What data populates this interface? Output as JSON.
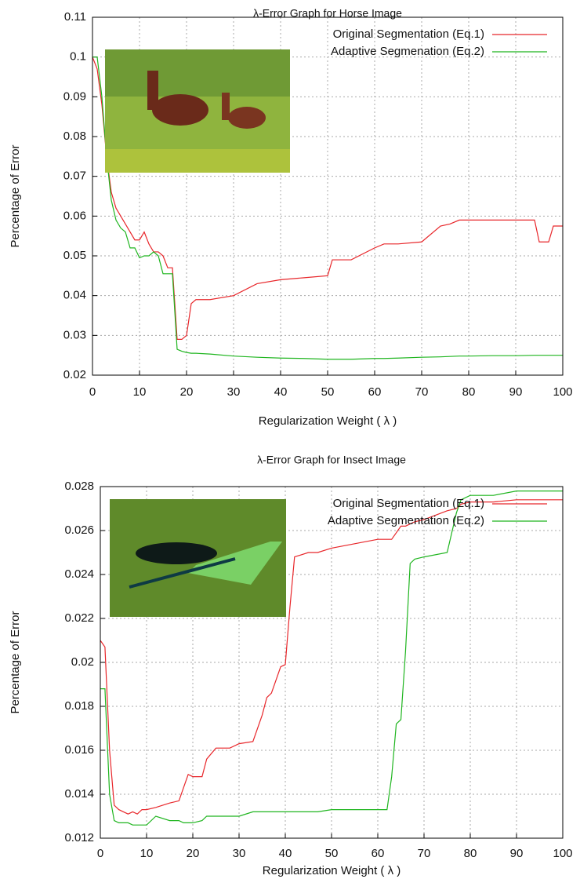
{
  "chart_data": [
    {
      "type": "line",
      "title": "λ-Error Graph for Horse Image",
      "x_label": "Regularization Weight ( λ )",
      "y_label": "Percentage of Error",
      "x": [
        0,
        1,
        2,
        3,
        4,
        5,
        6,
        7,
        8,
        9,
        10,
        11,
        12,
        13,
        14,
        15,
        16,
        17,
        18,
        19,
        20,
        21,
        22,
        25,
        30,
        35,
        40,
        45,
        50,
        51,
        55,
        60,
        62,
        65,
        70,
        74,
        76,
        78,
        80,
        85,
        90,
        94,
        95,
        97,
        98,
        100
      ],
      "series": [
        {
          "name": "Original Segmentation (Eq.1)",
          "color": "#e8262a",
          "values": [
            0.1,
            0.097,
            0.088,
            0.075,
            0.066,
            0.062,
            0.06,
            0.058,
            0.056,
            0.054,
            0.054,
            0.056,
            0.053,
            0.051,
            0.051,
            0.05,
            0.047,
            0.047,
            0.029,
            0.029,
            0.03,
            0.038,
            0.039,
            0.039,
            0.04,
            0.043,
            0.044,
            0.0445,
            0.045,
            0.049,
            0.049,
            0.052,
            0.053,
            0.053,
            0.0535,
            0.0575,
            0.058,
            0.059,
            0.059,
            0.059,
            0.059,
            0.059,
            0.0535,
            0.0535,
            0.0575,
            0.0575
          ]
        },
        {
          "name": "Adaptive Segmenation (Eq.2)",
          "color": "#1fb51f",
          "values": [
            0.1,
            0.1,
            0.09,
            0.075,
            0.064,
            0.059,
            0.057,
            0.056,
            0.052,
            0.052,
            0.0495,
            0.05,
            0.05,
            0.051,
            0.05,
            0.0455,
            0.0455,
            0.0455,
            0.0265,
            0.026,
            0.0257,
            0.0255,
            0.0255,
            0.0253,
            0.0248,
            0.0245,
            0.0243,
            0.0242,
            0.024,
            0.024,
            0.024,
            0.0242,
            0.0242,
            0.0243,
            0.0245,
            0.0246,
            0.0247,
            0.0248,
            0.0248,
            0.0249,
            0.0249,
            0.025,
            0.025,
            0.025,
            0.025,
            0.025
          ]
        }
      ],
      "xlim": [
        0,
        100
      ],
      "xticks": [
        0,
        10,
        20,
        30,
        40,
        50,
        60,
        70,
        80,
        90,
        100
      ],
      "ylim": [
        0.02,
        0.11
      ],
      "yticks": [
        0.02,
        0.03,
        0.04,
        0.05,
        0.06,
        0.07,
        0.08,
        0.09,
        0.1,
        0.11
      ],
      "grid": true,
      "legend": "top-right"
    },
    {
      "type": "line",
      "title": "λ-Error Graph for Insect Image",
      "x_label": "Regularization Weight ( λ )",
      "y_label": "Percentage of Error",
      "x": [
        0,
        1,
        2,
        3,
        4,
        5,
        6,
        7,
        8,
        9,
        10,
        12,
        15,
        17,
        18,
        19,
        20,
        22,
        23,
        25,
        28,
        30,
        33,
        35,
        36,
        37,
        38,
        39,
        40,
        41,
        42,
        45,
        47,
        50,
        55,
        60,
        62,
        63,
        64,
        65,
        66,
        67,
        68,
        70,
        75,
        77,
        78,
        80,
        85,
        90,
        100
      ],
      "series": [
        {
          "name": "Original Segmentation (Eq.1)",
          "color": "#e8262a",
          "values": [
            0.021,
            0.0207,
            0.016,
            0.0135,
            0.0133,
            0.0132,
            0.0131,
            0.0132,
            0.0131,
            0.0133,
            0.0133,
            0.0134,
            0.0136,
            0.0137,
            0.0143,
            0.0149,
            0.0148,
            0.0148,
            0.0156,
            0.0161,
            0.0161,
            0.0163,
            0.0164,
            0.0176,
            0.0184,
            0.0186,
            0.0192,
            0.0198,
            0.0199,
            0.0225,
            0.0248,
            0.025,
            0.025,
            0.0252,
            0.0254,
            0.0256,
            0.0256,
            0.0256,
            0.0259,
            0.0262,
            0.0262,
            0.0263,
            0.0264,
            0.0265,
            0.0269,
            0.027,
            0.0272,
            0.0273,
            0.0273,
            0.0274,
            0.0274
          ]
        },
        {
          "name": "Adaptive Segmentation (Eq.2)",
          "color": "#1fb51f",
          "values": [
            0.0188,
            0.0188,
            0.014,
            0.0128,
            0.0127,
            0.0127,
            0.0127,
            0.0126,
            0.0126,
            0.0126,
            0.0126,
            0.013,
            0.0128,
            0.0128,
            0.0127,
            0.0127,
            0.0127,
            0.0128,
            0.013,
            0.013,
            0.013,
            0.013,
            0.0132,
            0.0132,
            0.0132,
            0.0132,
            0.0132,
            0.0132,
            0.0132,
            0.0132,
            0.0132,
            0.0132,
            0.0132,
            0.0133,
            0.0133,
            0.0133,
            0.0133,
            0.0148,
            0.0172,
            0.0174,
            0.0205,
            0.0245,
            0.0247,
            0.0248,
            0.025,
            0.0268,
            0.0274,
            0.0276,
            0.0276,
            0.0278,
            0.0278
          ]
        }
      ],
      "xlim": [
        0,
        100
      ],
      "xticks": [
        0,
        10,
        20,
        30,
        40,
        50,
        60,
        70,
        80,
        90,
        100
      ],
      "ylim": [
        0.012,
        0.028
      ],
      "yticks": [
        0.012,
        0.014,
        0.016,
        0.018,
        0.02,
        0.022,
        0.024,
        0.026,
        0.028
      ],
      "grid": true,
      "legend": "top-right"
    }
  ]
}
